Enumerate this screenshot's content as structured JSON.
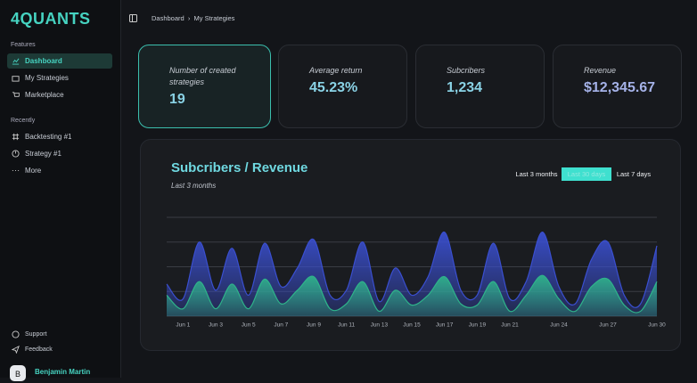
{
  "brand": "4QUANTS",
  "sidebar": {
    "features_heading": "Features",
    "features": [
      "Dashboard",
      "My Strategies",
      "Marketplace"
    ],
    "recent_heading": "Recently",
    "recent": [
      "Backtesting #1",
      "Strategy #1",
      "More"
    ],
    "footer": [
      "Support",
      "Feedback"
    ],
    "user": {
      "initial": "B",
      "name": "Benjamin Martin"
    }
  },
  "breadcrumb": [
    "Dashboard",
    "My Strategies"
  ],
  "cards": [
    {
      "label": "Number of created strategies",
      "value": "19"
    },
    {
      "label": "Average return",
      "value": "45.23%"
    },
    {
      "label": "Subcribers",
      "value": "1,234"
    },
    {
      "label": "Revenue",
      "value": "$12,345.67"
    }
  ],
  "chart_data": {
    "type": "area",
    "title": "Subcribers / Revenue",
    "subtitle": "Last 3 months",
    "ranges": [
      "Last 3 months",
      "Last 30 days",
      "Last 7 days"
    ],
    "active_range": 1,
    "x": [
      null,
      "Jun 1",
      null,
      "Jun 3",
      null,
      "Jun 5",
      null,
      "Jun 7",
      null,
      "Jun 9",
      null,
      "Jun 11",
      null,
      "Jun 13",
      null,
      "Jun 15",
      null,
      "Jun 17",
      null,
      "Jun 19",
      null,
      "Jun 21",
      null,
      null,
      "Jun 24",
      null,
      null,
      "Jun 27",
      null,
      null,
      "Jun 30"
    ],
    "series": [
      {
        "color": "#3a4fd0",
        "values": [
          130,
          70,
          300,
          105,
          275,
          85,
          295,
          120,
          195,
          310,
          85,
          105,
          300,
          60,
          195,
          85,
          160,
          340,
          105,
          85,
          295,
          70,
          140,
          340,
          120,
          50,
          230,
          300,
          85,
          50,
          285
        ]
      },
      {
        "color": "#2fb38a",
        "values": [
          85,
          30,
          140,
          30,
          130,
          30,
          150,
          50,
          105,
          160,
          30,
          50,
          140,
          20,
          105,
          45,
          85,
          160,
          50,
          45,
          140,
          20,
          85,
          165,
          70,
          20,
          120,
          150,
          45,
          20,
          140
        ]
      }
    ],
    "ylim": [
      0,
      400
    ],
    "yticks": [
      0,
      100,
      200,
      300,
      400
    ],
    "grid": true
  }
}
